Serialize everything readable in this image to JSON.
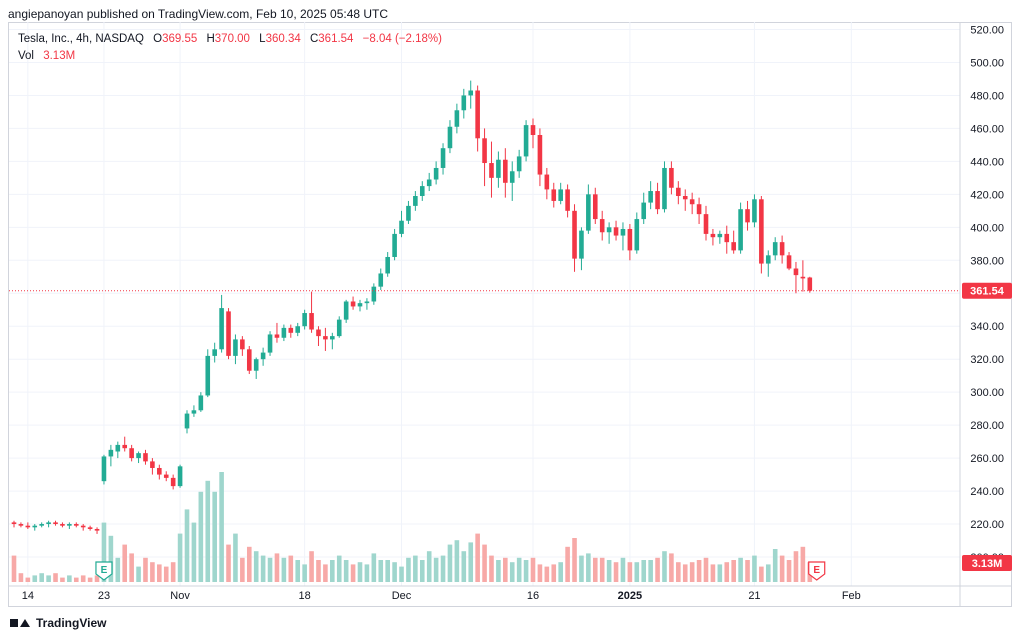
{
  "header": {
    "attribution": "angiepanoyan published on TradingView.com, Feb 10, 2025 05:48 UTC"
  },
  "legend": {
    "symbol": "Tesla, Inc., 4h, NASDAQ",
    "open_label": "O",
    "open": "369.55",
    "high_label": "H",
    "high": "370.00",
    "low_label": "L",
    "low": "360.34",
    "close_label": "C",
    "close": "361.54",
    "change": "−8.04 (−2.18%)",
    "vol_label": "Vol",
    "vol": "3.13M"
  },
  "footer": {
    "brand": "TradingView"
  },
  "colors": {
    "up": "#22ab94",
    "down": "#f23645",
    "up_vol": "#9fd6cd",
    "down_vol": "#f7a9a7",
    "grid": "#f0f3fa",
    "axis_text": "#131722"
  },
  "chart_data": {
    "type": "candlestick",
    "symbol": "TSLA",
    "interval": "4h",
    "ylim": [
      200,
      525
    ],
    "y_ticks": [
      "200.00",
      "220.00",
      "240.00",
      "260.00",
      "280.00",
      "300.00",
      "320.00",
      "340.00",
      "360.00",
      "380.00",
      "400.00",
      "420.00",
      "440.00",
      "460.00",
      "480.00",
      "500.00",
      "520.00"
    ],
    "x_ticks": [
      {
        "label": "14",
        "i": 2
      },
      {
        "label": "23",
        "i": 13
      },
      {
        "label": "Nov",
        "i": 24
      },
      {
        "label": "18",
        "i": 42
      },
      {
        "label": "Dec",
        "i": 56
      },
      {
        "label": "16",
        "i": 75
      },
      {
        "label": "2025",
        "i": 89
      },
      {
        "label": "21",
        "i": 107
      },
      {
        "label": "Feb",
        "i": 121
      }
    ],
    "last_price": "361.54",
    "last_volume": "3.13M",
    "events": [
      {
        "label": "E",
        "i": 13
      },
      {
        "label": "E",
        "i": 116
      }
    ],
    "candles": [
      [
        221,
        222,
        218,
        220
      ],
      [
        220,
        221,
        218,
        219
      ],
      [
        219,
        221,
        217,
        218
      ],
      [
        218,
        220,
        216,
        219
      ],
      [
        219,
        221,
        218,
        220
      ],
      [
        220,
        222,
        218,
        221
      ],
      [
        221,
        222,
        219,
        220
      ],
      [
        220,
        221,
        218,
        219
      ],
      [
        219,
        221,
        217,
        220
      ],
      [
        220,
        221,
        218,
        219
      ],
      [
        219,
        220,
        216,
        218
      ],
      [
        218,
        219,
        216,
        217
      ],
      [
        217,
        218,
        214,
        216
      ],
      [
        246,
        262,
        244,
        261
      ],
      [
        261,
        268,
        255,
        265
      ],
      [
        264,
        270,
        260,
        268
      ],
      [
        268,
        273,
        264,
        266
      ],
      [
        266,
        268,
        258,
        260
      ],
      [
        260,
        264,
        257,
        263
      ],
      [
        263,
        265,
        256,
        258
      ],
      [
        258,
        260,
        250,
        254
      ],
      [
        254,
        256,
        247,
        250
      ],
      [
        250,
        252,
        246,
        248
      ],
      [
        248,
        250,
        241,
        243
      ],
      [
        243,
        256,
        242,
        255
      ],
      [
        278,
        289,
        275,
        287
      ],
      [
        287,
        292,
        285,
        289
      ],
      [
        289,
        300,
        288,
        298
      ],
      [
        298,
        326,
        297,
        322
      ],
      [
        322,
        330,
        318,
        326
      ],
      [
        326,
        359,
        324,
        351
      ],
      [
        349,
        351,
        320,
        322
      ],
      [
        322,
        335,
        317,
        332
      ],
      [
        332,
        334,
        322,
        326
      ],
      [
        326,
        328,
        311,
        313
      ],
      [
        313,
        321,
        308,
        320
      ],
      [
        320,
        327,
        316,
        324
      ],
      [
        324,
        337,
        322,
        335
      ],
      [
        335,
        342,
        330,
        333
      ],
      [
        333,
        341,
        331,
        339
      ],
      [
        339,
        341,
        333,
        336
      ],
      [
        336,
        342,
        334,
        340
      ],
      [
        340,
        350,
        338,
        348
      ],
      [
        348,
        361,
        336,
        338
      ],
      [
        338,
        340,
        328,
        334
      ],
      [
        334,
        339,
        325,
        332
      ],
      [
        332,
        336,
        326,
        334
      ],
      [
        334,
        346,
        333,
        344
      ],
      [
        344,
        356,
        342,
        355
      ],
      [
        355,
        358,
        350,
        352
      ],
      [
        352,
        356,
        349,
        354
      ],
      [
        354,
        357,
        350,
        355
      ],
      [
        355,
        366,
        353,
        364
      ],
      [
        364,
        375,
        362,
        372
      ],
      [
        372,
        385,
        370,
        382
      ],
      [
        382,
        399,
        380,
        396
      ],
      [
        396,
        410,
        394,
        404
      ],
      [
        404,
        416,
        402,
        413
      ],
      [
        413,
        422,
        410,
        419
      ],
      [
        419,
        428,
        416,
        425
      ],
      [
        425,
        433,
        422,
        429
      ],
      [
        429,
        440,
        426,
        436
      ],
      [
        436,
        451,
        432,
        448
      ],
      [
        448,
        465,
        445,
        461
      ],
      [
        461,
        475,
        457,
        471
      ],
      [
        471,
        484,
        466,
        480
      ],
      [
        480,
        489,
        472,
        483
      ],
      [
        483,
        486,
        446,
        454
      ],
      [
        454,
        460,
        425,
        439
      ],
      [
        439,
        452,
        418,
        430
      ],
      [
        430,
        446,
        424,
        441
      ],
      [
        441,
        448,
        418,
        427
      ],
      [
        427,
        440,
        416,
        434
      ],
      [
        434,
        447,
        430,
        443
      ],
      [
        443,
        465,
        440,
        462
      ],
      [
        462,
        466,
        448,
        456
      ],
      [
        456,
        460,
        425,
        432
      ],
      [
        432,
        436,
        417,
        423
      ],
      [
        423,
        427,
        412,
        416
      ],
      [
        416,
        427,
        414,
        423
      ],
      [
        423,
        426,
        406,
        410
      ],
      [
        410,
        414,
        373,
        381
      ],
      [
        381,
        400,
        374,
        398
      ],
      [
        398,
        426,
        396,
        420
      ],
      [
        420,
        424,
        402,
        405
      ],
      [
        405,
        410,
        392,
        397
      ],
      [
        397,
        403,
        390,
        400
      ],
      [
        400,
        404,
        392,
        395
      ],
      [
        395,
        403,
        386,
        399
      ],
      [
        399,
        402,
        380,
        386
      ],
      [
        386,
        409,
        384,
        405
      ],
      [
        405,
        421,
        402,
        415
      ],
      [
        415,
        428,
        411,
        422
      ],
      [
        422,
        427,
        408,
        411
      ],
      [
        411,
        440,
        409,
        436
      ],
      [
        436,
        440,
        420,
        424
      ],
      [
        424,
        428,
        414,
        419
      ],
      [
        419,
        423,
        410,
        417
      ],
      [
        417,
        421,
        408,
        414
      ],
      [
        414,
        418,
        402,
        408
      ],
      [
        408,
        413,
        392,
        396
      ],
      [
        396,
        399,
        389,
        394
      ],
      [
        394,
        398,
        390,
        396
      ],
      [
        396,
        401,
        384,
        391
      ],
      [
        391,
        398,
        384,
        386
      ],
      [
        386,
        415,
        384,
        411
      ],
      [
        411,
        416,
        398,
        403
      ],
      [
        403,
        420,
        400,
        417
      ],
      [
        417,
        419,
        372,
        378
      ],
      [
        378,
        386,
        370,
        383
      ],
      [
        383,
        394,
        380,
        391
      ],
      [
        391,
        395,
        378,
        383
      ],
      [
        383,
        385,
        374,
        375
      ],
      [
        375,
        379,
        360,
        371
      ],
      [
        370,
        380,
        361,
        369
      ],
      [
        369.55,
        370,
        360.34,
        361.54
      ]
    ],
    "volumes": [
      12,
      4,
      2,
      3,
      4,
      3,
      4,
      2,
      3,
      2,
      3,
      2,
      3,
      27,
      21,
      11,
      17,
      13,
      7,
      11,
      9,
      8,
      7,
      9,
      22,
      33,
      27,
      41,
      46,
      41,
      50,
      17,
      22,
      11,
      16,
      14,
      12,
      11,
      13,
      11,
      12,
      10,
      8,
      14,
      10,
      8,
      10,
      12,
      10,
      8,
      9,
      8,
      13,
      10,
      10,
      9,
      7,
      11,
      12,
      10,
      14,
      11,
      12,
      17,
      19,
      14,
      18,
      22,
      17,
      12,
      10,
      11,
      9,
      11,
      10,
      11,
      8,
      7,
      8,
      9,
      16,
      20,
      12,
      13,
      11,
      11,
      10,
      9,
      11,
      9,
      9,
      10,
      10,
      11,
      14,
      13,
      9,
      8,
      9,
      10,
      11,
      8,
      8,
      9,
      10,
      11,
      10,
      12,
      7,
      8,
      15,
      12,
      10,
      14,
      16,
      9
    ]
  }
}
